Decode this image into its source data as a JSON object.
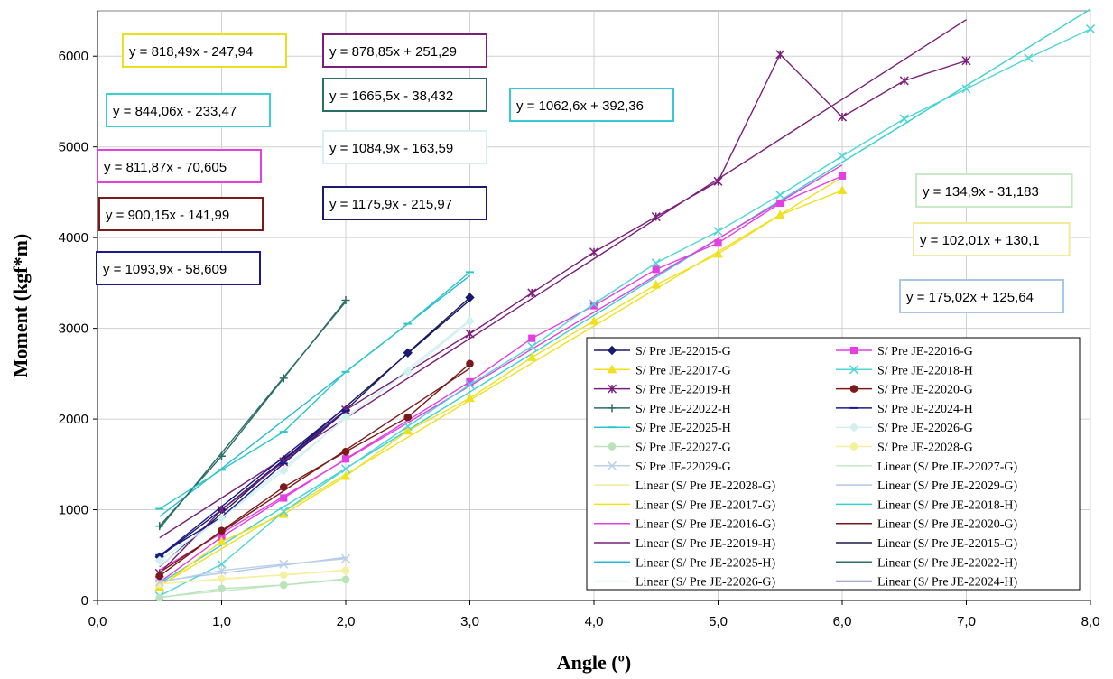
{
  "chart_data": {
    "type": "scatter",
    "xlabel": "Angle (º)",
    "ylabel": "Moment (kgf*m)",
    "xlim": [
      0,
      8
    ],
    "ylim": [
      0,
      6500
    ],
    "x_ticks": [
      "0,0",
      "1,0",
      "2,0",
      "3,0",
      "4,0",
      "5,0",
      "6,0",
      "7,0",
      "8,0"
    ],
    "y_ticks": [
      "0",
      "1000",
      "2000",
      "3000",
      "4000",
      "5000",
      "6000"
    ],
    "grid": true,
    "legend_position": "bottom-right",
    "series": [
      {
        "name": "S/ Pre JE-22015-G",
        "color": "#1a1a6e",
        "marker": "diamond",
        "x": [
          0.5,
          1.0,
          1.5,
          2.0,
          2.5,
          3.0
        ],
        "y": [
          480,
          1000,
          1550,
          2100,
          2730,
          3340
        ]
      },
      {
        "name": "S/ Pre JE-22016-G",
        "color": "#e33fe3",
        "marker": "square",
        "x": [
          0.5,
          1.0,
          1.5,
          2.0,
          3.0,
          3.5,
          4.0,
          4.5,
          5.0,
          5.5,
          6.0
        ],
        "y": [
          200,
          700,
          1130,
          1560,
          2410,
          2890,
          3250,
          3650,
          3940,
          4380,
          4680
        ]
      },
      {
        "name": "S/ Pre JE-22017-G",
        "color": "#f0e020",
        "marker": "triangle",
        "x": [
          0.5,
          1.0,
          1.5,
          2.0,
          2.5,
          3.0,
          3.5,
          4.0,
          4.5,
          5.0,
          5.5,
          6.0
        ],
        "y": [
          150,
          650,
          950,
          1370,
          1870,
          2230,
          2680,
          3080,
          3480,
          3820,
          4250,
          4520
        ]
      },
      {
        "name": "S/ Pre JE-22018-H",
        "color": "#4fd6d6",
        "marker": "x",
        "x": [
          0.5,
          1.0,
          1.5,
          2.0,
          2.5,
          3.0,
          3.5,
          4.0,
          4.5,
          5.0,
          5.5,
          6.0,
          6.5,
          7.0,
          7.5,
          8.0
        ],
        "y": [
          50,
          400,
          980,
          1450,
          1920,
          2380,
          2800,
          3270,
          3720,
          4070,
          4470,
          4900,
          5310,
          5640,
          5980,
          6300
        ]
      },
      {
        "name": "S/ Pre JE-22019-H",
        "color": "#7a1f7a",
        "marker": "star",
        "x": [
          0.5,
          1.0,
          1.5,
          2.0,
          3.0,
          3.5,
          4.0,
          4.5,
          5.0,
          5.5,
          6.0,
          6.5,
          7.0
        ],
        "y": [
          300,
          1000,
          1530,
          2100,
          2940,
          3390,
          3840,
          4230,
          4620,
          6020,
          5330,
          5730,
          5950
        ]
      },
      {
        "name": "S/ Pre JE-22020-G",
        "color": "#7a1a1a",
        "marker": "circle",
        "x": [
          0.5,
          1.0,
          1.5,
          2.0,
          2.5,
          3.0
        ],
        "y": [
          270,
          770,
          1250,
          1640,
          2020,
          2610
        ]
      },
      {
        "name": "S/ Pre JE-22022-H",
        "color": "#2a6e66",
        "marker": "plus",
        "x": [
          0.5,
          1.0,
          1.5,
          2.0
        ],
        "y": [
          820,
          1590,
          2450,
          3310
        ]
      },
      {
        "name": "S/ Pre JE-22024-H",
        "color": "#1a1a8a",
        "marker": "dash",
        "x": [
          0.5,
          1.0,
          1.5,
          2.0
        ],
        "y": [
          500,
          920,
          1510,
          2090
        ]
      },
      {
        "name": "S/ Pre JE-22025-H",
        "color": "#2ac8c8",
        "marker": "dash",
        "x": [
          0.5,
          1.0,
          1.5,
          2.0,
          2.5,
          3.0
        ],
        "y": [
          1010,
          1440,
          1860,
          2520,
          3050,
          3620
        ]
      },
      {
        "name": "S/ Pre JE-22026-G",
        "color": "#d2f0f0",
        "marker": "diamond",
        "x": [
          0.5,
          1.0,
          1.5,
          2.0,
          2.5,
          3.0
        ],
        "y": [
          440,
          910,
          1430,
          2020,
          2520,
          3080
        ]
      },
      {
        "name": "S/ Pre JE-22027-G",
        "color": "#b9e3b9",
        "marker": "circle",
        "x": [
          0.5,
          1.0,
          1.5,
          2.0
        ],
        "y": [
          30,
          130,
          170,
          230
        ]
      },
      {
        "name": "S/ Pre JE-22028-G",
        "color": "#f5f0a0",
        "marker": "circle",
        "x": [
          0.5,
          1.0,
          1.5,
          2.0
        ],
        "y": [
          180,
          240,
          280,
          330
        ]
      },
      {
        "name": "S/ Pre JE-22029-G",
        "color": "#bcd0ea",
        "marker": "x",
        "x": [
          0.5,
          1.0,
          1.5,
          2.0
        ],
        "y": [
          200,
          330,
          400,
          460
        ]
      }
    ],
    "trendlines": [
      {
        "name": "Linear (S/ Pre JE-22027-G)",
        "color": "#c8e8c8",
        "slope": 134.9,
        "intercept": -31.183,
        "x": [
          0.5,
          2.0
        ]
      },
      {
        "name": "Linear (S/ Pre JE-22029-G)",
        "color": "#b0c8e8",
        "slope": 175.02,
        "intercept": 125.64,
        "x": [
          0.5,
          2.0
        ]
      },
      {
        "name": "Linear (S/ Pre JE-22028-G)",
        "color": "#f0ec9a",
        "slope": 102.01,
        "intercept": 130.1,
        "x": [
          0.5,
          2.0
        ]
      },
      {
        "name": "Linear (S/ Pre JE-22017-G)",
        "color": "#f0e020",
        "slope": 818.49,
        "intercept": -247.94,
        "x": [
          0.5,
          6.0
        ]
      },
      {
        "name": "Linear (S/ Pre JE-22018-H)",
        "color": "#38d0d0",
        "slope": 844.06,
        "intercept": -233.47,
        "x": [
          0.5,
          8.0
        ]
      },
      {
        "name": "Linear (S/ Pre JE-22016-G)",
        "color": "#e33fe3",
        "slope": 811.87,
        "intercept": -70.605,
        "x": [
          0.5,
          6.0
        ]
      },
      {
        "name": "Linear (S/ Pre JE-22020-G)",
        "color": "#7a1a1a",
        "slope": 900.15,
        "intercept": -141.99,
        "x": [
          0.5,
          3.0
        ]
      },
      {
        "name": "Linear (S/ Pre JE-22019-H)",
        "color": "#7a1f7a",
        "slope": 878.85,
        "intercept": 251.29,
        "x": [
          0.5,
          7.0
        ]
      },
      {
        "name": "Linear (S/ Pre JE-22015-G)",
        "color": "#1a1a4e",
        "slope": 1175.9,
        "intercept": -215.97,
        "x": [
          0.5,
          3.0
        ]
      },
      {
        "name": "Linear (S/ Pre JE-22025-H)",
        "color": "#2ab8d8",
        "slope": 1062.6,
        "intercept": 392.36,
        "x": [
          0.5,
          3.0
        ]
      },
      {
        "name": "Linear (S/ Pre JE-22022-H)",
        "color": "#2a6e66",
        "slope": 1665.5,
        "intercept": -38.432,
        "x": [
          0.5,
          2.0
        ]
      },
      {
        "name": "Linear (S/ Pre JE-22026-G)",
        "color": "#d2f0f0",
        "slope": 1084.9,
        "intercept": -163.59,
        "x": [
          0.5,
          3.0
        ]
      },
      {
        "name": "Linear (S/ Pre JE-22024-H)",
        "color": "#1a1a8a",
        "slope": 1093.9,
        "intercept": -58.609,
        "x": [
          0.5,
          2.0
        ]
      }
    ],
    "equation_labels": [
      {
        "text": "y = 818,49x - 247,94",
        "border_color": "#e8e020"
      },
      {
        "text": "y = 878,85x + 251,29",
        "border_color": "#7a1f7a"
      },
      {
        "text": "y = 844,06x - 233,47",
        "border_color": "#38d0d0"
      },
      {
        "text": "y = 1665,5x - 38,432",
        "border_color": "#2a6e66"
      },
      {
        "text": "y = 1062,6x + 392,36",
        "border_color": "#38c8d8"
      },
      {
        "text": "y = 1084,9x - 163,59",
        "border_color": "#d8f0f0"
      },
      {
        "text": "y = 811,87x - 70,605",
        "border_color": "#e33fe3"
      },
      {
        "text": "y = 900,15x - 141,99",
        "border_color": "#7a1a1a"
      },
      {
        "text": "y = 1175,9x - 215,97",
        "border_color": "#1a1a6e"
      },
      {
        "text": "y = 1093,9x - 58,609",
        "border_color": "#1a1a8a"
      },
      {
        "text": "y = 134,9x - 31,183",
        "border_color": "#c8e8c8"
      },
      {
        "text": "y = 102,01x + 130,1",
        "border_color": "#f0ec9a"
      },
      {
        "text": "y = 175,02x + 125,64",
        "border_color": "#a8c8e8"
      }
    ],
    "legend": [
      {
        "label": "S/ Pre JE-22015-G",
        "color": "#1a1a6e",
        "marker": "diamond"
      },
      {
        "label": "S/ Pre JE-22016-G",
        "color": "#e33fe3",
        "marker": "square"
      },
      {
        "label": "S/ Pre JE-22017-G",
        "color": "#f0e020",
        "marker": "triangle"
      },
      {
        "label": "S/ Pre JE-22018-H",
        "color": "#4fd6d6",
        "marker": "x"
      },
      {
        "label": "S/ Pre JE-22019-H",
        "color": "#7a1f7a",
        "marker": "star"
      },
      {
        "label": "S/ Pre JE-22020-G",
        "color": "#7a1a1a",
        "marker": "circle"
      },
      {
        "label": "S/ Pre JE-22022-H",
        "color": "#2a6e66",
        "marker": "plus"
      },
      {
        "label": "S/ Pre JE-22024-H",
        "color": "#1a1a8a",
        "marker": "dash"
      },
      {
        "label": "S/ Pre JE-22025-H",
        "color": "#2ac8c8",
        "marker": "dash"
      },
      {
        "label": "S/ Pre JE-22026-G",
        "color": "#d2f0f0",
        "marker": "diamond"
      },
      {
        "label": "S/ Pre JE-22027-G",
        "color": "#b9e3b9",
        "marker": "circle"
      },
      {
        "label": "S/ Pre JE-22028-G",
        "color": "#f5f0a0",
        "marker": "circle"
      },
      {
        "label": "S/ Pre JE-22029-G",
        "color": "#bcd0ea",
        "marker": "x"
      },
      {
        "label": "Linear (S/ Pre JE-22027-G)",
        "color": "#c8e8c8",
        "marker": "line"
      },
      {
        "label": "Linear (S/ Pre JE-22028-G)",
        "color": "#f0ec9a",
        "marker": "line"
      },
      {
        "label": "Linear (S/ Pre JE-22029-G)",
        "color": "#b0c8e8",
        "marker": "line"
      },
      {
        "label": "Linear (S/ Pre JE-22017-G)",
        "color": "#f0e020",
        "marker": "line"
      },
      {
        "label": "Linear (S/ Pre JE-22018-H)",
        "color": "#38d0d0",
        "marker": "line"
      },
      {
        "label": "Linear (S/ Pre JE-22016-G)",
        "color": "#e33fe3",
        "marker": "line"
      },
      {
        "label": "Linear (S/ Pre JE-22020-G)",
        "color": "#7a1a1a",
        "marker": "line"
      },
      {
        "label": "Linear (S/ Pre JE-22019-H)",
        "color": "#7a1f7a",
        "marker": "line"
      },
      {
        "label": "Linear (S/ Pre JE-22015-G)",
        "color": "#1a1a4e",
        "marker": "line"
      },
      {
        "label": "Linear (S/ Pre JE-22025-H)",
        "color": "#2ab8d8",
        "marker": "line"
      },
      {
        "label": "Linear (S/ Pre JE-22022-H)",
        "color": "#2a6e66",
        "marker": "line"
      },
      {
        "label": "Linear (S/ Pre JE-22026-G)",
        "color": "#d2f0f0",
        "marker": "line"
      },
      {
        "label": "Linear (S/ Pre JE-22024-H)",
        "color": "#1a1a8a",
        "marker": "line"
      }
    ]
  }
}
